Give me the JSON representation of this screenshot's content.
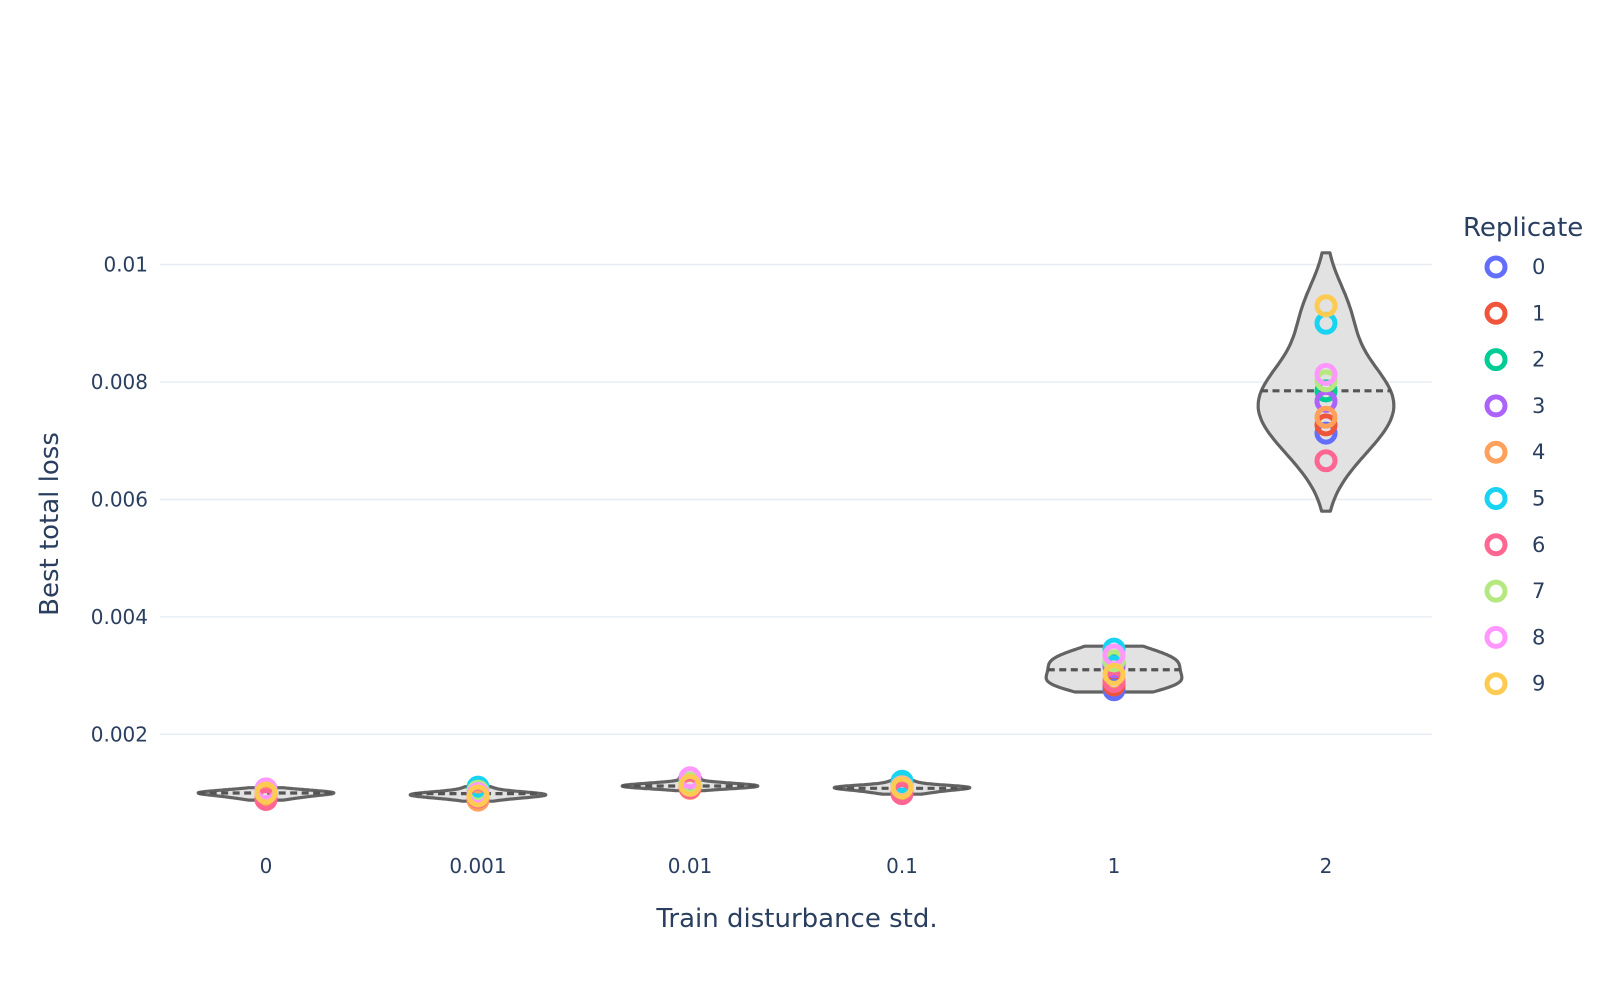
{
  "chart_data": {
    "type": "violin",
    "xlabel": "Train disturbance std.",
    "ylabel": "Best total loss",
    "categories": [
      "0",
      "0.001",
      "0.01",
      "0.1",
      "1",
      "2"
    ],
    "yticks": [
      0.002,
      0.004,
      0.006,
      0.008,
      0.01
    ],
    "ytick_labels": [
      "0.002",
      "0.004",
      "0.006",
      "0.008",
      "0.01"
    ],
    "ylim": [
      0.0002,
      0.0111
    ],
    "grid": true,
    "legend": {
      "title": "Replicate",
      "position": "right",
      "entries": [
        {
          "label": "0",
          "color": "#636efa"
        },
        {
          "label": "1",
          "color": "#ef553b"
        },
        {
          "label": "2",
          "color": "#00cc96"
        },
        {
          "label": "3",
          "color": "#ab63fa"
        },
        {
          "label": "4",
          "color": "#ffa15a"
        },
        {
          "label": "5",
          "color": "#19d3f3"
        },
        {
          "label": "6",
          "color": "#ff6692"
        },
        {
          "label": "7",
          "color": "#b6e880"
        },
        {
          "label": "8",
          "color": "#ff97ff"
        },
        {
          "label": "9",
          "color": "#fecb52"
        }
      ]
    },
    "violins": [
      {
        "category": "0",
        "median": 0.001,
        "min": 0.00088,
        "max": 0.00109,
        "width": 0.32
      },
      {
        "category": "0.001",
        "median": 0.00099,
        "min": 0.00086,
        "max": 0.00111,
        "width": 0.32
      },
      {
        "category": "0.01",
        "median": 0.00112,
        "min": 0.00104,
        "max": 0.00128,
        "width": 0.32
      },
      {
        "category": "0.1",
        "median": 0.00108,
        "min": 0.00098,
        "max": 0.00123,
        "width": 0.32
      },
      {
        "category": "1",
        "median": 0.0031,
        "min": 0.00272,
        "max": 0.0035,
        "width": 0.32
      },
      {
        "category": "2",
        "median": 0.00785,
        "min": 0.0058,
        "max": 0.0102,
        "width": 0.32
      }
    ],
    "series": [
      {
        "name": "0",
        "color": "#636efa",
        "values": [
          0.00098,
          0.00097,
          0.00111,
          0.00109,
          0.00276,
          0.00713
        ]
      },
      {
        "name": "1",
        "color": "#ef553b",
        "values": [
          0.00095,
          0.00094,
          0.0011,
          0.00102,
          0.00284,
          0.00727
        ]
      },
      {
        "name": "2",
        "color": "#00cc96",
        "values": [
          0.00101,
          0.001,
          0.00116,
          0.00112,
          0.00322,
          0.00785
        ]
      },
      {
        "name": "3",
        "color": "#ab63fa",
        "values": [
          0.00099,
          0.00098,
          0.00112,
          0.00108,
          0.00315,
          0.00767
        ]
      },
      {
        "name": "4",
        "color": "#ffa15a",
        "values": [
          0.00093,
          0.00088,
          0.00108,
          0.00105,
          0.00292,
          0.0074
        ]
      },
      {
        "name": "5",
        "color": "#19d3f3",
        "values": [
          0.00102,
          0.0011,
          0.00114,
          0.0012,
          0.00345,
          0.009
        ]
      },
      {
        "name": "6",
        "color": "#ff6692",
        "values": [
          0.00089,
          0.00093,
          0.00109,
          0.00099,
          0.0029,
          0.00666
        ]
      },
      {
        "name": "7",
        "color": "#b6e880",
        "values": [
          0.00104,
          0.00103,
          0.00117,
          0.00111,
          0.00325,
          0.00802
        ]
      },
      {
        "name": "8",
        "color": "#ff97ff",
        "values": [
          0.00107,
          0.00099,
          0.00126,
          0.0011,
          0.00335,
          0.00813
        ]
      },
      {
        "name": "9",
        "color": "#fecb52",
        "values": [
          0.001,
          0.00095,
          0.00113,
          0.00109,
          0.00302,
          0.0093
        ]
      }
    ]
  }
}
